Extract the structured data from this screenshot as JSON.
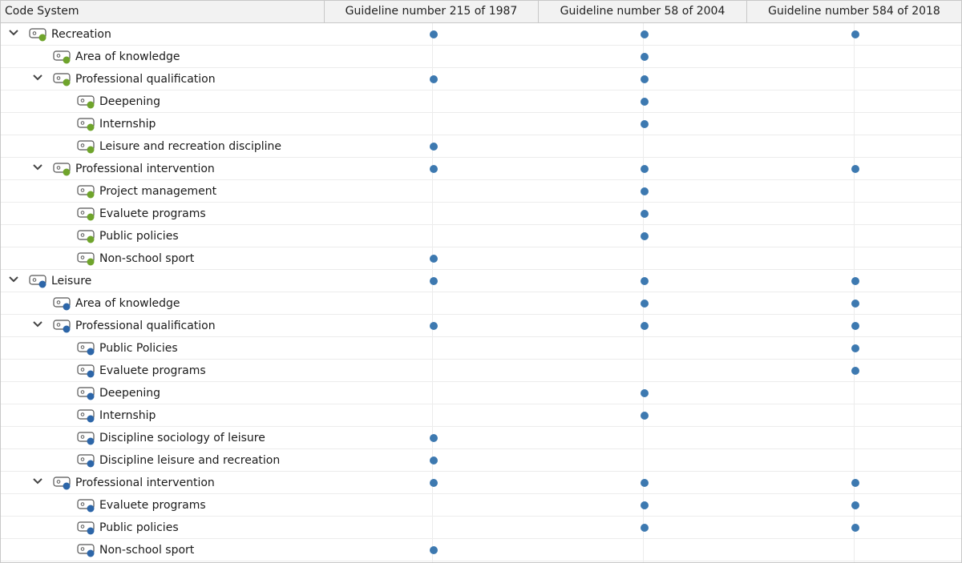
{
  "header": {
    "code_col": "Code System",
    "documents": [
      "Guideline number 215 of 1987",
      "Guideline number 58 of 2004",
      "Guideline number 584 of 2018"
    ]
  },
  "colors": {
    "recreation": "#6fa42c",
    "leisure": "#2d66a8",
    "marker": "#3d79b0"
  },
  "rows": [
    {
      "label": "Recreation",
      "level": 0,
      "expanded": true,
      "color": "recreation",
      "hits": [
        true,
        true,
        true
      ]
    },
    {
      "label": "Area of knowledge",
      "level": 1,
      "expanded": false,
      "color": "recreation",
      "hits": [
        false,
        true,
        false
      ]
    },
    {
      "label": "Professional qualification",
      "level": 1,
      "expanded": true,
      "color": "recreation",
      "hits": [
        true,
        true,
        false
      ]
    },
    {
      "label": "Deepening",
      "level": 2,
      "expanded": false,
      "color": "recreation",
      "hits": [
        false,
        true,
        false
      ]
    },
    {
      "label": "Internship",
      "level": 2,
      "expanded": false,
      "color": "recreation",
      "hits": [
        false,
        true,
        false
      ]
    },
    {
      "label": "Leisure and recreation discipline",
      "level": 2,
      "expanded": false,
      "color": "recreation",
      "hits": [
        true,
        false,
        false
      ]
    },
    {
      "label": "Professional intervention",
      "level": 1,
      "expanded": true,
      "color": "recreation",
      "hits": [
        true,
        true,
        true
      ]
    },
    {
      "label": "Project management",
      "level": 2,
      "expanded": false,
      "color": "recreation",
      "hits": [
        false,
        true,
        false
      ]
    },
    {
      "label": "Evaluete programs",
      "level": 2,
      "expanded": false,
      "color": "recreation",
      "hits": [
        false,
        true,
        false
      ]
    },
    {
      "label": "Public policies",
      "level": 2,
      "expanded": false,
      "color": "recreation",
      "hits": [
        false,
        true,
        false
      ]
    },
    {
      "label": "Non-school sport",
      "level": 2,
      "expanded": false,
      "color": "recreation",
      "hits": [
        true,
        false,
        false
      ]
    },
    {
      "label": "Leisure",
      "level": 0,
      "expanded": true,
      "color": "leisure",
      "hits": [
        true,
        true,
        true
      ]
    },
    {
      "label": "Area of knowledge",
      "level": 1,
      "expanded": false,
      "color": "leisure",
      "hits": [
        false,
        true,
        true
      ]
    },
    {
      "label": "Professional qualification",
      "level": 1,
      "expanded": true,
      "color": "leisure",
      "hits": [
        true,
        true,
        true
      ]
    },
    {
      "label": "Public Policies",
      "level": 2,
      "expanded": false,
      "color": "leisure",
      "hits": [
        false,
        false,
        true
      ]
    },
    {
      "label": "Evaluete programs",
      "level": 2,
      "expanded": false,
      "color": "leisure",
      "hits": [
        false,
        false,
        true
      ]
    },
    {
      "label": "Deepening",
      "level": 2,
      "expanded": false,
      "color": "leisure",
      "hits": [
        false,
        true,
        false
      ]
    },
    {
      "label": "Internship",
      "level": 2,
      "expanded": false,
      "color": "leisure",
      "hits": [
        false,
        true,
        false
      ]
    },
    {
      "label": "Discipline sociology of leisure",
      "level": 2,
      "expanded": false,
      "color": "leisure",
      "hits": [
        true,
        false,
        false
      ]
    },
    {
      "label": "Discipline leisure and recreation",
      "level": 2,
      "expanded": false,
      "color": "leisure",
      "hits": [
        true,
        false,
        false
      ]
    },
    {
      "label": "Professional intervention",
      "level": 1,
      "expanded": true,
      "color": "leisure",
      "hits": [
        true,
        true,
        true
      ]
    },
    {
      "label": "Evaluete programs",
      "level": 2,
      "expanded": false,
      "color": "leisure",
      "hits": [
        false,
        true,
        true
      ]
    },
    {
      "label": "Public policies",
      "level": 2,
      "expanded": false,
      "color": "leisure",
      "hits": [
        false,
        true,
        true
      ]
    },
    {
      "label": "Non-school sport",
      "level": 2,
      "expanded": false,
      "color": "leisure",
      "hits": [
        true,
        false,
        false
      ]
    }
  ]
}
